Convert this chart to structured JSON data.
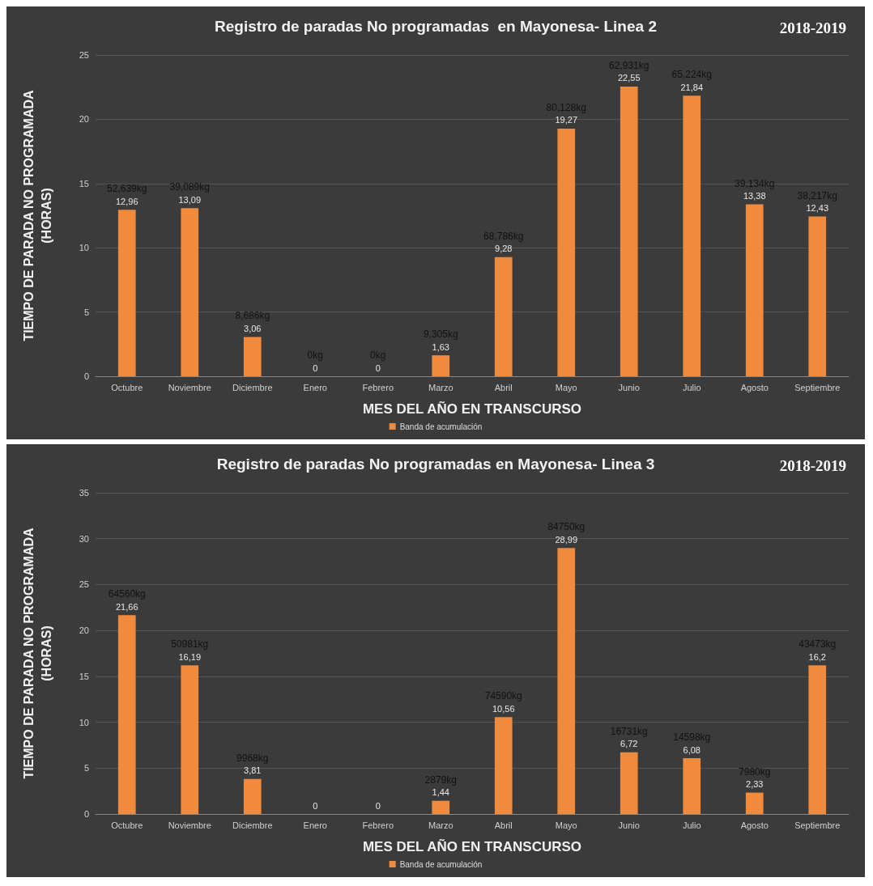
{
  "chart_data": [
    {
      "type": "bar",
      "title": "Registro de paradas No programadas  en Mayonesa- Linea 2",
      "subtitle": "2018-2019",
      "xlabel": "MES DEL AÑO EN TRANSCURSO",
      "ylabel": "TIEMPO DE PARADA NO PROGRAMADA\n(HORAS)",
      "categories": [
        "Octubre",
        "Noviembre",
        "Diciembre",
        "Enero",
        "Febrero",
        "Marzo",
        "Abril",
        "Mayo",
        "Junio",
        "Julio",
        "Agosto",
        "Septiembre"
      ],
      "series": [
        {
          "name": "Banda de acumulación",
          "color": "#f08a3c",
          "values": [
            12.96,
            13.09,
            3.06,
            0,
            0,
            1.63,
            9.28,
            19.27,
            22.55,
            21.84,
            13.38,
            12.43
          ],
          "value_labels": [
            "12,96",
            "13,09",
            "3,06",
            "0",
            "0",
            "1,63",
            "9,28",
            "19,27",
            "22,55",
            "21,84",
            "13,38",
            "12,43"
          ]
        }
      ],
      "annotations": [
        {
          "text": "52,639kg",
          "x": "Octubre",
          "y": 12.96
        },
        {
          "text": "39,089kg",
          "x": "Noviembre",
          "y": 13.09
        },
        {
          "text": "8,686kg",
          "x": "Diciembre",
          "y": 3.06
        },
        {
          "text": "0kg",
          "x": "Enero",
          "y": 0
        },
        {
          "text": "0kg",
          "x": "Febrero",
          "y": 0
        },
        {
          "text": "9,305kg",
          "x": "Marzo",
          "y": 1.63
        },
        {
          "text": "68,786kg",
          "x": "Abril",
          "y": 9.28
        },
        {
          "text": "80,128kg",
          "x": "Mayo",
          "y": 19.27
        },
        {
          "text": "62,931kg",
          "x": "Junio",
          "y": 22.55
        },
        {
          "text": "65,224kg",
          "x": "Julio",
          "y": 21.84
        },
        {
          "text": "39,134kg",
          "x": "Agosto",
          "y": 13.38
        },
        {
          "text": "38,217kg",
          "x": "Septiembre",
          "y": 12.43
        }
      ],
      "ylim": [
        0,
        25
      ],
      "yticks": [
        0,
        5,
        10,
        15,
        20,
        25
      ],
      "grid": "y",
      "legend": "bottom"
    },
    {
      "type": "bar",
      "title": "Registro de paradas No programadas en Mayonesa- Linea 3",
      "subtitle": "2018-2019",
      "xlabel": "MES DEL AÑO EN TRANSCURSO",
      "ylabel": "TIEMPO DE PARADA NO PROGRAMADA\n(HORAS)",
      "categories": [
        "Octubre",
        "Noviembre",
        "Diciembre",
        "Enero",
        "Febrero",
        "Marzo",
        "Abril",
        "Mayo",
        "Junio",
        "Julio",
        "Agosto",
        "Septiembre"
      ],
      "series": [
        {
          "name": "Banda de acumulación",
          "color": "#f08a3c",
          "values": [
            21.66,
            16.19,
            3.81,
            0,
            0,
            1.44,
            10.56,
            28.99,
            6.72,
            6.08,
            2.33,
            16.2
          ],
          "value_labels": [
            "21,66",
            "16,19",
            "3,81",
            "0",
            "0",
            "1,44",
            "10,56",
            "28,99",
            "6,72",
            "6,08",
            "2,33",
            "16,2"
          ]
        }
      ],
      "annotations": [
        {
          "text": "64560kg",
          "x": "Octubre",
          "y": 21.66
        },
        {
          "text": "50981kg",
          "x": "Noviembre",
          "y": 16.19
        },
        {
          "text": "9968kg",
          "x": "Diciembre",
          "y": 3.81
        },
        {
          "text": "2879kg",
          "x": "Marzo",
          "y": 1.44
        },
        {
          "text": "74590kg",
          "x": "Abril",
          "y": 10.56
        },
        {
          "text": "84750kg",
          "x": "Mayo",
          "y": 28.99
        },
        {
          "text": "16731kg",
          "x": "Junio",
          "y": 6.72
        },
        {
          "text": "14598kg",
          "x": "Julio",
          "y": 6.08
        },
        {
          "text": "7980kg",
          "x": "Agosto",
          "y": 2.33
        },
        {
          "text": "43473kg",
          "x": "Septiembre",
          "y": 16.2
        }
      ],
      "ylim": [
        0,
        35
      ],
      "yticks": [
        0,
        5,
        10,
        15,
        20,
        25,
        30,
        35
      ],
      "grid": "y",
      "legend": "bottom"
    }
  ]
}
